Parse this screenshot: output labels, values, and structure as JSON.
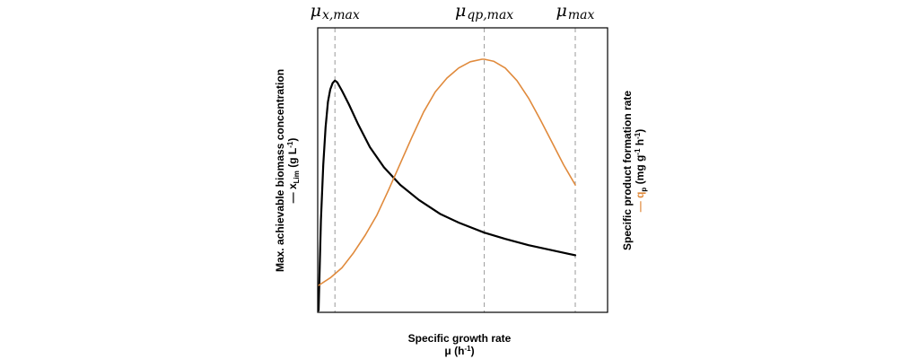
{
  "chart_data": {
    "type": "line",
    "title": "",
    "xlabel": "Specific growth rate",
    "xlabel_unit": {
      "base": "μ (h",
      "sup": "-1",
      "close": ")"
    },
    "ylabel_left": {
      "line1": "Max. achievable biomass concentration",
      "symbol_prefix": "— x",
      "symbol_sub": "Lim",
      "unit": " (g L",
      "unit_sup": "-1",
      "unit_close": ")"
    },
    "ylabel_right": {
      "line1": "Specific product formation rate",
      "symbol_prefix": "— q",
      "symbol_sub": "p",
      "unit": " (mg g",
      "unit_sup1": "-1",
      "unit_mid": " h",
      "unit_sup2": "-1",
      "unit_close": ")"
    },
    "xlim": [
      0,
      1.1
    ],
    "ylim": [
      0,
      1
    ],
    "x_ticks": [],
    "y_ticks": [],
    "grid": false,
    "reference_lines": [
      {
        "x": 0.07,
        "label_base": "μ",
        "label_sub": "x,max"
      },
      {
        "x": 0.71,
        "label_base": "μ",
        "label_sub": "qp,max"
      },
      {
        "x": 1.1,
        "label_base": "μ",
        "label_sub": "max"
      }
    ],
    "series": [
      {
        "color": "#000000",
        "x": [
          0.0,
          0.005,
          0.01,
          0.02,
          0.03,
          0.04,
          0.05,
          0.06,
          0.07,
          0.08,
          0.1,
          0.13,
          0.17,
          0.22,
          0.28,
          0.35,
          0.43,
          0.52,
          0.6,
          0.71,
          0.8,
          0.9,
          1.0,
          1.1
        ],
        "y": [
          0.0,
          0.18,
          0.36,
          0.58,
          0.73,
          0.83,
          0.88,
          0.905,
          0.915,
          0.908,
          0.875,
          0.82,
          0.74,
          0.65,
          0.57,
          0.5,
          0.44,
          0.385,
          0.35,
          0.31,
          0.285,
          0.26,
          0.24,
          0.22
        ]
      },
      {
        "color": "#e08a3c",
        "x": [
          0.0,
          0.05,
          0.1,
          0.15,
          0.2,
          0.25,
          0.3,
          0.35,
          0.4,
          0.45,
          0.5,
          0.55,
          0.6,
          0.65,
          0.7,
          0.71,
          0.75,
          0.8,
          0.85,
          0.9,
          0.95,
          1.0,
          1.05,
          1.1
        ],
        "y": [
          0.1,
          0.13,
          0.17,
          0.23,
          0.3,
          0.38,
          0.48,
          0.585,
          0.69,
          0.79,
          0.87,
          0.925,
          0.965,
          0.99,
          1.0,
          1.0,
          0.992,
          0.965,
          0.915,
          0.845,
          0.76,
          0.67,
          0.58,
          0.5
        ]
      }
    ]
  }
}
